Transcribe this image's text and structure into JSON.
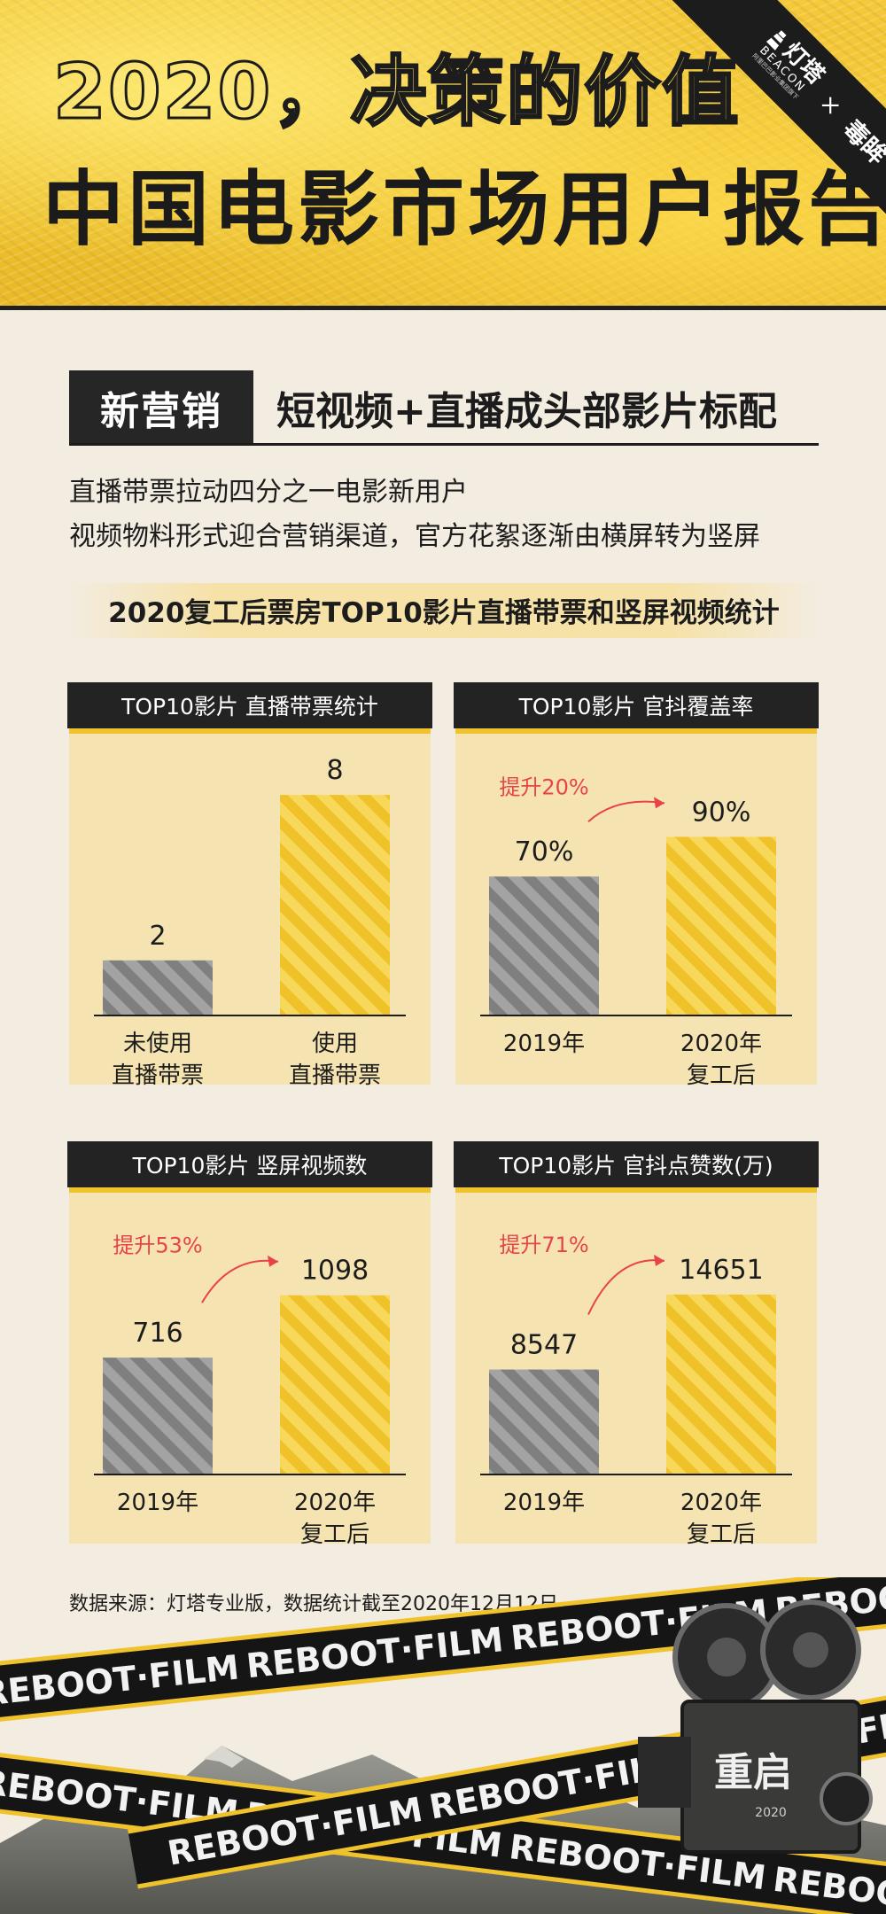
{
  "header": {
    "title_line1": "2020，决策的价值",
    "title_line2": "中国电影市场用户报告",
    "brand_name": "灯塔",
    "brand_sub": "BEACON",
    "brand_tagline": "阿里巴巴影业集团旗下",
    "cross": "×",
    "partner": "毒眸"
  },
  "section": {
    "tag": "新营销",
    "title": "短视频+直播成头部影片标配",
    "desc1": "直播带票拉动四分之一电影新用户",
    "desc2": "视频物料形式迎合营销渠道，官方花絮逐渐由横屏转为竖屏",
    "subtitle": "2020复工后票房TOP10影片直播带票和竖屏视频统计"
  },
  "colors": {
    "gold": "#f0c32c",
    "gray": "#8a8a8a",
    "dark": "#232323",
    "accent": "#e8434b"
  },
  "chart_data": [
    {
      "type": "bar",
      "title": "TOP10影片 直播带票统计",
      "categories": [
        [
          "未使用",
          "直播带票"
        ],
        [
          "使用",
          "直播带票"
        ]
      ],
      "values": [
        2,
        8
      ],
      "value_labels": [
        "2",
        "8"
      ],
      "ylim": [
        0,
        9
      ]
    },
    {
      "type": "bar",
      "title": "TOP10影片 官抖覆盖率",
      "categories": [
        [
          "2019年"
        ],
        [
          "2020年",
          "复工后"
        ]
      ],
      "values": [
        70,
        90
      ],
      "value_labels": [
        "70%",
        "90%"
      ],
      "annotation": "提升20%",
      "ylim": [
        0,
        125
      ]
    },
    {
      "type": "bar",
      "title": "TOP10影片 竖屏视频数",
      "categories": [
        [
          "2019年"
        ],
        [
          "2020年",
          "复工后"
        ]
      ],
      "values": [
        716,
        1098
      ],
      "value_labels": [
        "716",
        "1098"
      ],
      "annotation": "提升53%",
      "ylim": [
        0,
        1520
      ]
    },
    {
      "type": "bar",
      "title": "TOP10影片 官抖点赞数(万)",
      "categories": [
        [
          "2019年"
        ],
        [
          "2020年",
          "复工后"
        ]
      ],
      "values": [
        8547,
        14651
      ],
      "value_labels": [
        "8547",
        "14651"
      ],
      "annotation": "提升71%",
      "ylim": [
        0,
        20200
      ]
    }
  ],
  "source": "数据来源：灯塔专业版，数据统计截至2020年12月12日",
  "footer": {
    "tape_text": "REBOOT·FILM",
    "camera_text": "重启",
    "camera_year": "2020"
  }
}
